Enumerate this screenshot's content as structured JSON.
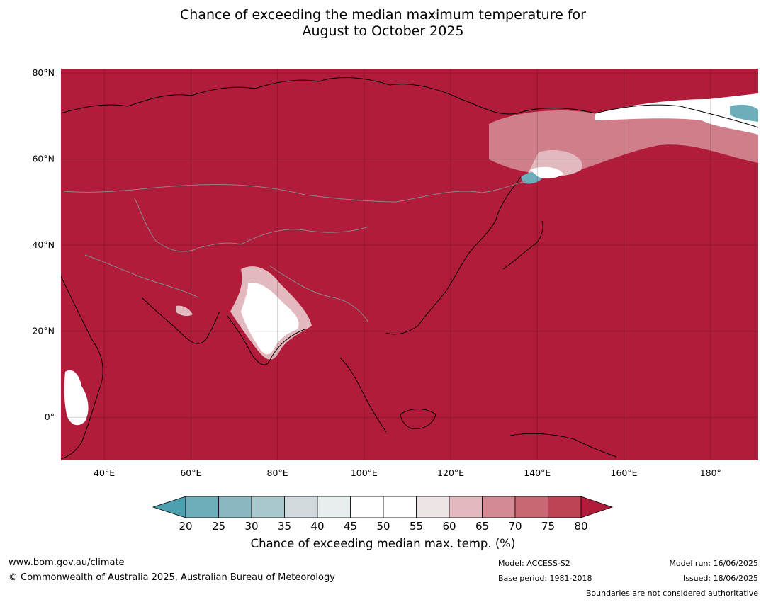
{
  "title": {
    "line1": "Chance of exceeding the median maximum temperature for",
    "line2": "August to October 2025"
  },
  "map": {
    "lon_range": [
      30,
      191
    ],
    "lat_range": [
      -10,
      81
    ],
    "lon_ticks": [
      {
        "value": 40,
        "label": "40°E"
      },
      {
        "value": 60,
        "label": "60°E"
      },
      {
        "value": 80,
        "label": "80°E"
      },
      {
        "value": 100,
        "label": "100°E"
      },
      {
        "value": 120,
        "label": "120°E"
      },
      {
        "value": 140,
        "label": "140°E"
      },
      {
        "value": 160,
        "label": "160°E"
      },
      {
        "value": 180,
        "label": "180°"
      }
    ],
    "lat_ticks": [
      {
        "value": 80,
        "label": "80°N"
      },
      {
        "value": 60,
        "label": "60°N"
      },
      {
        "value": 40,
        "label": "40°N"
      },
      {
        "value": 20,
        "label": "20°N"
      },
      {
        "value": 0,
        "label": "0°"
      }
    ],
    "grid": true,
    "background_color": "#b11c3a",
    "land_edge_color": "#000000",
    "border_color": "#888888"
  },
  "colorbar": {
    "levels": [
      20,
      25,
      30,
      35,
      40,
      45,
      50,
      55,
      60,
      65,
      70,
      75,
      80
    ],
    "colors": [
      "#6eaebb",
      "#89b8c3",
      "#a9c8cd",
      "#d1d9dc",
      "#e8eef0",
      "#ffffff",
      "#ffffff",
      "#ebe3e4",
      "#e2b9bf",
      "#d38a94",
      "#c76872",
      "#bc4453"
    ],
    "under_color": "#4e9fb0",
    "over_color": "#b11c3a",
    "label": "Chance of exceeding median max. temp. (%)"
  },
  "footer": {
    "website": "www.bom.gov.au/climate",
    "copyright": "© Commonwealth of Australia 2025, Australian Bureau of Meteorology",
    "model": "Model: ACCESS-S2",
    "base_period": "Base period: 1981-2018",
    "model_run": "Model run: 16/06/2025",
    "issued": "Issued: 18/06/2025",
    "disclaimer": "Boundaries are not considered authoritative"
  }
}
